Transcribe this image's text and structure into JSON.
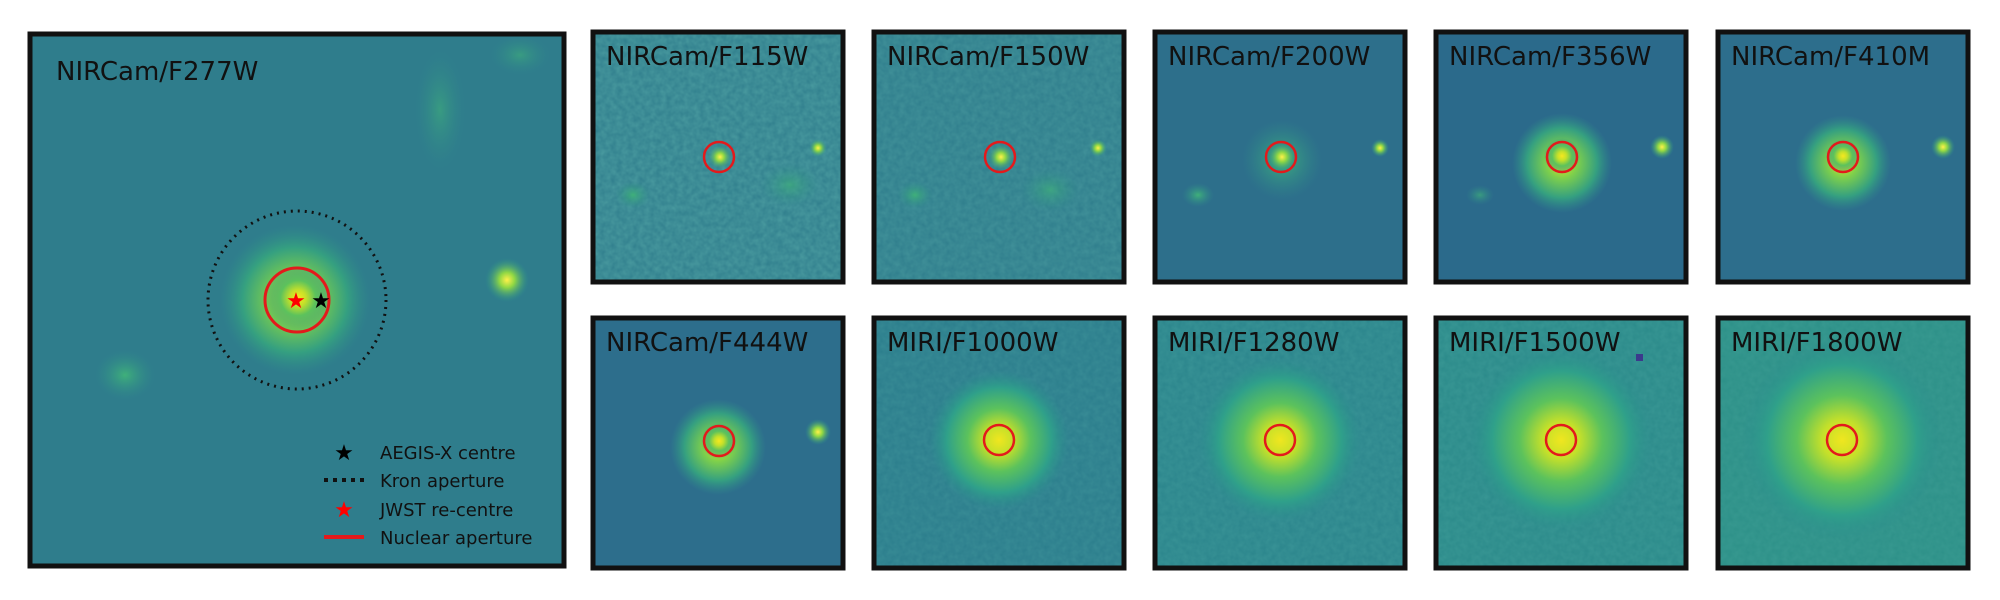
{
  "main_panel": {
    "label": "NIRCam/F277W",
    "legend": [
      {
        "key": "aegis",
        "label": "AEGIS-X centre"
      },
      {
        "key": "kron",
        "label": "Kron aperture"
      },
      {
        "key": "jwst",
        "label": "JWST re-centre"
      },
      {
        "key": "nuclear",
        "label": "Nuclear aperture"
      }
    ]
  },
  "panels": [
    {
      "label": "NIRCam/F115W"
    },
    {
      "label": "NIRCam/F150W"
    },
    {
      "label": "NIRCam/F200W"
    },
    {
      "label": "NIRCam/F356W"
    },
    {
      "label": "NIRCam/F410M"
    },
    {
      "label": "NIRCam/F444W"
    },
    {
      "label": "MIRI/F1000W"
    },
    {
      "label": "MIRI/F1280W"
    },
    {
      "label": "MIRI/F1500W"
    },
    {
      "label": "MIRI/F1800W"
    }
  ],
  "colors": {
    "background": "#2f6d8c",
    "aperture": "#e31a1c",
    "aegis_star": "#000000",
    "jwst_star": "#ff0000",
    "frame": "#111111"
  }
}
